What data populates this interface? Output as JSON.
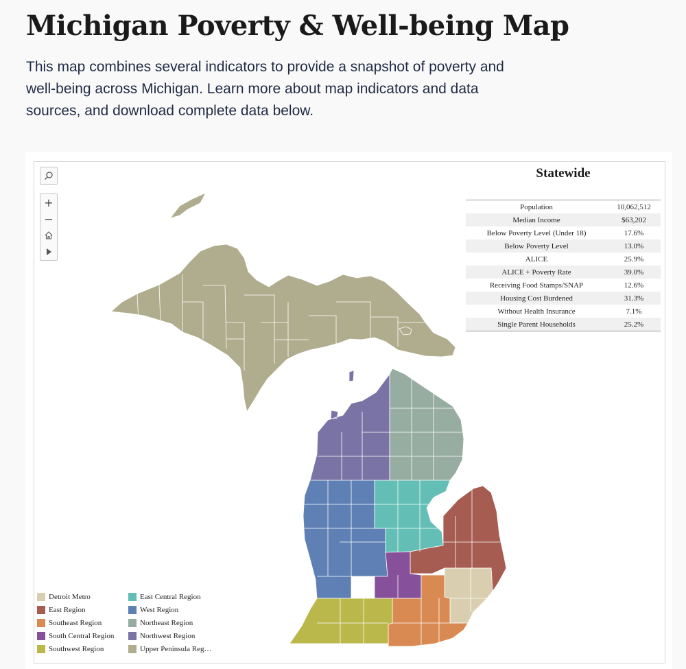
{
  "header": {
    "title": "Michigan Poverty & Well-being Map",
    "intro": "This map combines several indicators to provide a snapshot of poverty and well-being across Michigan. Learn more about map indicators and data sources, and download complete data below."
  },
  "controls": {
    "search_icon": "search-icon",
    "zoom_in": "+",
    "zoom_out": "−",
    "home_icon": "home-icon",
    "play_icon": "play-icon"
  },
  "stats": {
    "title": "Statewide",
    "rows": [
      {
        "label": "Population",
        "value": "10,062,512"
      },
      {
        "label": "Median Income",
        "value": "$63,202"
      },
      {
        "label": "Below Poverty Level (Under 18)",
        "value": "17.6%"
      },
      {
        "label": "Below Poverty Level",
        "value": "13.0%"
      },
      {
        "label": "ALICE",
        "value": "25.9%"
      },
      {
        "label": "ALICE + Poverty Rate",
        "value": "39.0%"
      },
      {
        "label": "Receiving Food Stamps/SNAP",
        "value": "12.6%"
      },
      {
        "label": "Housing Cost Burdened",
        "value": "31.3%"
      },
      {
        "label": "Without Health Insurance",
        "value": "7.1%"
      },
      {
        "label": "Single Parent Households",
        "value": "25.2%"
      }
    ]
  },
  "legend": [
    {
      "label": "Detroit Metro",
      "color": "#d9cfb0"
    },
    {
      "label": "East Region",
      "color": "#a65c50"
    },
    {
      "label": "Southeast Region",
      "color": "#d98a52"
    },
    {
      "label": "South Central Region",
      "color": "#86509a"
    },
    {
      "label": "Southwest Region",
      "color": "#bab84a"
    },
    {
      "label": "East Central Region",
      "color": "#63bfb5"
    },
    {
      "label": "West Region",
      "color": "#5f80b4"
    },
    {
      "label": "Northeast Region",
      "color": "#98ada2"
    },
    {
      "label": "Northwest Region",
      "color": "#7a74a6"
    },
    {
      "label": "Upper Peninsula Reg…",
      "color": "#b0ad8f"
    }
  ]
}
